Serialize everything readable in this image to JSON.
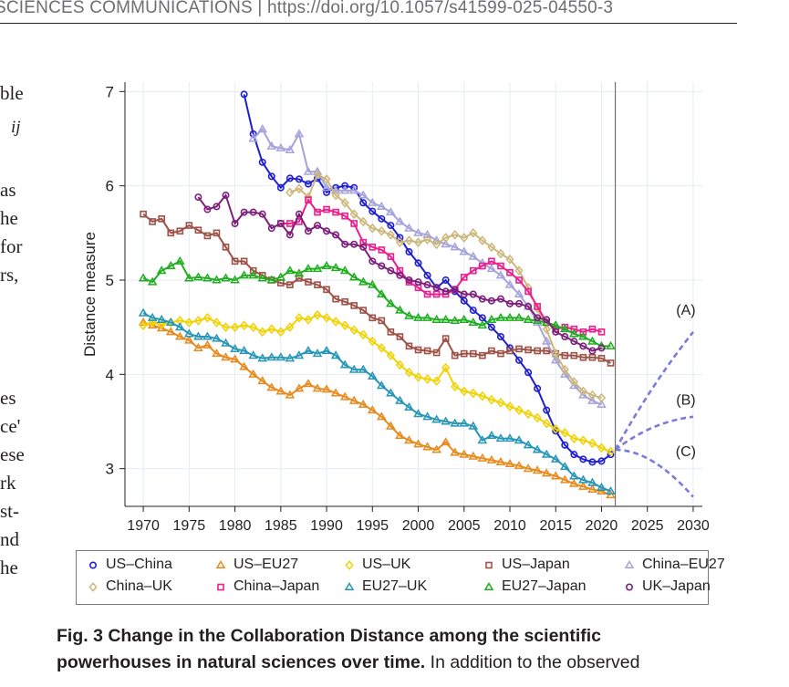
{
  "header": {
    "running_head": "SCIENCES COMMUNICATIONS | https://doi.org/10.1057/s41599-025-04550-3"
  },
  "body_fragments": [
    "ble",
    "ij",
    "as",
    "he",
    "for",
    "rs,",
    "es",
    "ce'",
    "ese",
    "rk",
    "st-",
    "nd",
    "he"
  ],
  "chart_data": {
    "type": "line",
    "title": "",
    "xlabel": "",
    "ylabel": "Distance measure",
    "xlim": [
      1968,
      2031
    ],
    "ylim": [
      2.6,
      7.1
    ],
    "xticks": [
      "1970",
      "1975",
      "1980",
      "1985",
      "1990",
      "1995",
      "2000",
      "2005",
      "2010",
      "2015",
      "2020",
      "2025",
      "2030"
    ],
    "yticks": [
      "3",
      "4",
      "5",
      "6",
      "7"
    ],
    "grid": true,
    "vline_x": 2021.5,
    "legend_position": "bottom",
    "series": [
      {
        "name": "US–China",
        "color": "#1f1fd1",
        "marker": "circle",
        "start": 1981,
        "values": [
          6.97,
          6.55,
          6.25,
          6.1,
          5.98,
          6.08,
          6.07,
          6.02,
          6.08,
          5.93,
          5.98,
          6.0,
          5.98,
          5.82,
          5.73,
          5.65,
          5.58,
          5.45,
          5.3,
          5.18,
          5.05,
          4.92,
          5.0,
          4.88,
          4.78,
          4.68,
          4.6,
          4.5,
          4.4,
          4.28,
          4.15,
          4.02,
          3.85,
          3.62,
          3.4,
          3.25,
          3.15,
          3.1,
          3.07,
          3.08,
          3.15
        ]
      },
      {
        "name": "US–EU27",
        "color": "#e8891c",
        "marker": "triangle",
        "start": 1970,
        "values": [
          4.55,
          4.52,
          4.49,
          4.45,
          4.4,
          4.36,
          4.28,
          4.31,
          4.22,
          4.18,
          4.16,
          4.08,
          4.0,
          3.93,
          3.86,
          3.82,
          3.78,
          3.85,
          3.9,
          3.85,
          3.84,
          3.8,
          3.76,
          3.72,
          3.68,
          3.62,
          3.55,
          3.45,
          3.35,
          3.3,
          3.26,
          3.23,
          3.2,
          3.28,
          3.17,
          3.15,
          3.13,
          3.11,
          3.09,
          3.07,
          3.05,
          3.03,
          3.0,
          2.98,
          2.95,
          2.92,
          2.88,
          2.84,
          2.81,
          2.78,
          2.76,
          2.72
        ]
      },
      {
        "name": "US–UK",
        "color": "#f1d200",
        "marker": "diamond",
        "start": 1970,
        "values": [
          4.52,
          4.55,
          4.53,
          4.55,
          4.57,
          4.55,
          4.57,
          4.6,
          4.55,
          4.5,
          4.5,
          4.52,
          4.5,
          4.45,
          4.48,
          4.45,
          4.5,
          4.6,
          4.58,
          4.63,
          4.6,
          4.56,
          4.52,
          4.47,
          4.42,
          4.35,
          4.28,
          4.2,
          4.1,
          4.02,
          3.97,
          3.95,
          3.93,
          4.07,
          3.87,
          3.82,
          3.8,
          3.77,
          3.73,
          3.7,
          3.66,
          3.62,
          3.58,
          3.54,
          3.48,
          3.42,
          3.38,
          3.32,
          3.3,
          3.27,
          3.22,
          3.18
        ]
      },
      {
        "name": "US–Japan",
        "color": "#9e5247",
        "marker": "square",
        "start": 1970,
        "values": [
          5.7,
          5.62,
          5.65,
          5.5,
          5.52,
          5.58,
          5.53,
          5.47,
          5.5,
          5.35,
          5.2,
          5.2,
          5.1,
          5.05,
          5.0,
          4.97,
          4.95,
          5.02,
          4.98,
          4.95,
          4.9,
          4.8,
          4.77,
          4.73,
          4.68,
          4.6,
          4.57,
          4.45,
          4.4,
          4.3,
          4.26,
          4.25,
          4.23,
          4.38,
          4.2,
          4.22,
          4.22,
          4.2,
          4.25,
          4.22,
          4.25,
          4.27,
          4.26,
          4.25,
          4.25,
          4.22,
          4.2,
          4.2,
          4.18,
          4.18,
          4.17,
          4.12
        ]
      },
      {
        "name": "China–EU27",
        "color": "#a5a3db",
        "marker": "triangle",
        "start": 1982,
        "values": [
          6.5,
          6.6,
          6.42,
          6.4,
          6.38,
          6.55,
          6.15,
          6.15,
          5.98,
          5.95,
          5.95,
          5.95,
          5.9,
          5.82,
          5.78,
          5.72,
          5.62,
          5.55,
          5.5,
          5.48,
          5.42,
          5.38,
          5.35,
          5.3,
          5.25,
          5.18,
          5.12,
          5.05,
          4.95,
          4.85,
          4.72,
          4.55,
          4.35,
          4.15,
          4.0,
          3.88,
          3.78,
          3.72,
          3.68
        ]
      },
      {
        "name": "China–UK",
        "color": "#ccb77a",
        "marker": "diamond",
        "start": 1986,
        "values": [
          5.93,
          5.97,
          5.88,
          6.12,
          6.07,
          5.9,
          5.82,
          5.7,
          5.62,
          5.55,
          5.52,
          5.48,
          5.4,
          5.42,
          5.4,
          5.43,
          5.38,
          5.45,
          5.48,
          5.45,
          5.5,
          5.42,
          5.35,
          5.28,
          5.22,
          5.1,
          4.92,
          4.7,
          4.48,
          4.22,
          4.05,
          3.92,
          3.82,
          3.78,
          3.75
        ]
      },
      {
        "name": "China–Japan",
        "color": "#ec1f8e",
        "marker": "square",
        "start": 1985,
        "values": [
          5.6,
          5.6,
          5.62,
          5.85,
          5.72,
          5.75,
          5.72,
          5.68,
          5.6,
          5.4,
          5.35,
          5.32,
          5.25,
          5.1,
          4.98,
          4.92,
          4.85,
          4.85,
          4.85,
          4.9,
          5.03,
          5.1,
          5.15,
          5.2,
          5.15,
          5.08,
          5.0,
          4.88,
          4.72,
          4.55,
          4.48,
          4.5,
          4.48,
          4.45,
          4.48,
          4.45
        ]
      },
      {
        "name": "EU27–UK",
        "color": "#2596b8",
        "marker": "triangle",
        "start": 1970,
        "values": [
          4.65,
          4.6,
          4.58,
          4.55,
          4.5,
          4.43,
          4.4,
          4.4,
          4.38,
          4.33,
          4.27,
          4.25,
          4.2,
          4.17,
          4.18,
          4.18,
          4.17,
          4.2,
          4.25,
          4.22,
          4.25,
          4.2,
          4.1,
          4.05,
          4.05,
          3.98,
          3.88,
          3.8,
          3.72,
          3.65,
          3.58,
          3.55,
          3.52,
          3.5,
          3.48,
          3.48,
          3.45,
          3.3,
          3.35,
          3.32,
          3.32,
          3.3,
          3.25,
          3.2,
          3.15,
          3.1,
          3.02,
          2.92,
          2.88,
          2.85,
          2.8,
          2.76
        ]
      },
      {
        "name": "EU27–Japan",
        "color": "#1fae1f",
        "marker": "triangle",
        "start": 1970,
        "values": [
          5.02,
          4.98,
          5.1,
          5.15,
          5.2,
          5.02,
          5.03,
          5.02,
          5.0,
          5.02,
          5.0,
          5.05,
          5.05,
          5.02,
          5.0,
          5.03,
          5.1,
          5.07,
          5.12,
          5.12,
          5.15,
          5.13,
          5.1,
          5.03,
          4.98,
          4.95,
          4.85,
          4.75,
          4.68,
          4.62,
          4.6,
          4.6,
          4.58,
          4.58,
          4.57,
          4.58,
          4.55,
          4.52,
          4.58,
          4.6,
          4.6,
          4.6,
          4.58,
          4.57,
          4.55,
          4.52,
          4.48,
          4.43,
          4.4,
          4.35,
          4.3,
          4.3
        ]
      },
      {
        "name": "UK–Japan",
        "color": "#7c1f7a",
        "marker": "circle",
        "start": 1976,
        "values": [
          5.88,
          5.75,
          5.78,
          5.9,
          5.6,
          5.72,
          5.72,
          5.7,
          5.55,
          5.6,
          5.48,
          5.7,
          5.52,
          5.58,
          5.52,
          5.48,
          5.38,
          5.38,
          5.35,
          5.2,
          5.15,
          5.1,
          5.05,
          5.0,
          4.98,
          4.95,
          4.92,
          4.88,
          4.9,
          4.85,
          4.85,
          4.8,
          4.78,
          4.8,
          4.75,
          4.75,
          4.72,
          4.6,
          4.58,
          4.45,
          4.4,
          4.35,
          4.3,
          4.25,
          4.28
        ]
      }
    ],
    "projections": [
      {
        "label": "(A)",
        "points": [
          [
            2021.5,
            3.2
          ],
          [
            2025.5,
            3.9
          ],
          [
            2030,
            4.45
          ]
        ]
      },
      {
        "label": "(B)",
        "points": [
          [
            2021.5,
            3.2
          ],
          [
            2025.5,
            3.5
          ],
          [
            2030,
            3.55
          ]
        ]
      },
      {
        "label": "(C)",
        "points": [
          [
            2021.5,
            3.2
          ],
          [
            2025.5,
            3.2
          ],
          [
            2030,
            2.7
          ]
        ]
      }
    ]
  },
  "caption": {
    "bold": "Fig. 3 Change in the Collaboration Distance among the scientific powerhouses in natural sciences over time.",
    "line1_bold": "Fig. 3 Change in the Collaboration Distance among the scientific",
    "line2_bold": "powerhouses in natural sciences over time.",
    "line2_rest": " In addition to the observed"
  }
}
